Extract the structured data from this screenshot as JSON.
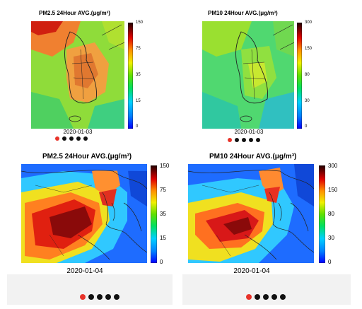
{
  "panels": [
    {
      "title_main": "PM2.5 24Hour AVG.",
      "title_unit": "(μg/m³)",
      "date": "2020-01-03",
      "ticks": [
        "150",
        "75",
        "35",
        "15",
        "0"
      ],
      "map_icon": "korea-pm-map"
    },
    {
      "title_main": "PM10 24Hour AVG.",
      "title_unit": "(μg/m³)",
      "date": "2020-01-03",
      "ticks": [
        "300",
        "150",
        "80",
        "30",
        "0"
      ],
      "map_icon": "korea-pm-map"
    },
    {
      "title_main": "PM2.5 24Hour AVG.",
      "title_unit": "(μg/m³)",
      "date": "2020-01-04",
      "ticks": [
        "150",
        "75",
        "35",
        "15",
        "0"
      ],
      "map_icon": "east-asia-pm-map"
    },
    {
      "title_main": "PM10 24Hour AVG.",
      "title_unit": "(μg/m³)",
      "date": "2020-01-04",
      "ticks": [
        "300",
        "150",
        "80",
        "30",
        "0"
      ],
      "map_icon": "east-asia-pm-map"
    }
  ],
  "colors": {
    "dot_active": "#e8332a",
    "dot_inactive": "#111111",
    "colorbar_top": "#1a0000",
    "colorbar_bottom": "#0000ff"
  }
}
